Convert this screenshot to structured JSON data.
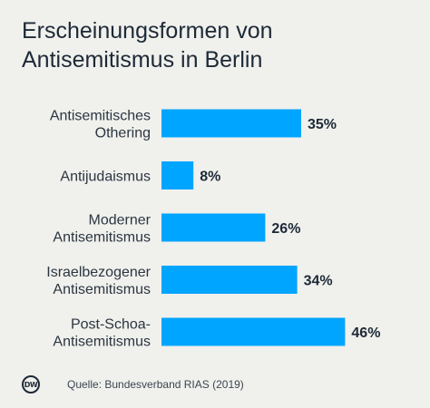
{
  "title_lines": [
    "Erscheinungsformen von",
    "Antisemitismus in Berlin"
  ],
  "chart_data": {
    "type": "bar",
    "orientation": "horizontal",
    "categories": [
      [
        "Antisemitisches",
        "Othering"
      ],
      [
        "Antijudaismus"
      ],
      [
        "Moderner",
        "Antisemitismus"
      ],
      [
        "Israelbezogener",
        "Antisemitismus"
      ],
      [
        "Post-Schoa-",
        "Antisemitismus"
      ]
    ],
    "values": [
      35,
      8,
      26,
      34,
      46
    ],
    "value_labels": [
      "35%",
      "8%",
      "26%",
      "34%",
      "46%"
    ],
    "unit": "%",
    "xlim": [
      0,
      50
    ],
    "bar_color": "#00a5ff",
    "grid": false,
    "legend": "none"
  },
  "footer": {
    "logo_text": "DW",
    "source": "Quelle: Bundesverband RIAS (2019)"
  }
}
